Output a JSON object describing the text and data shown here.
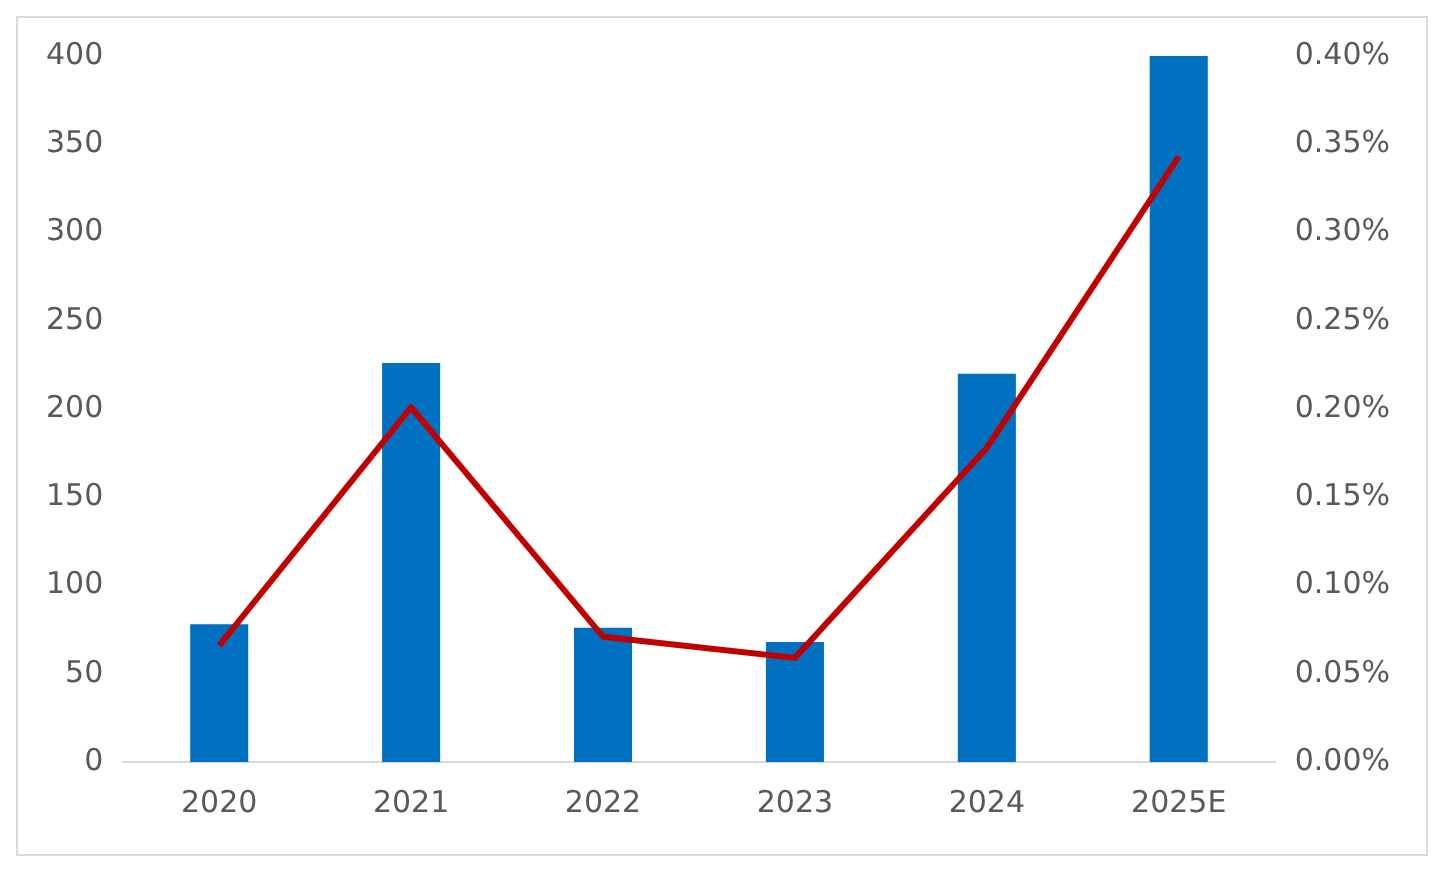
{
  "chart_data": {
    "type": "bar",
    "categories": [
      "2020",
      "2021",
      "2022",
      "2023",
      "2024",
      "2025E"
    ],
    "series": [
      {
        "color": "#0070c0",
        "values": [
          78,
          226,
          76,
          68,
          220,
          400
        ]
      },
      {
        "type": "line",
        "axis": "y2",
        "color": "#c00000",
        "marker": "none",
        "values": [
          0.066,
          0.201,
          0.071,
          0.059,
          0.178,
          0.343
        ]
      }
    ],
    "ylim": [
      0,
      400
    ],
    "yticks": [
      0,
      50,
      100,
      150,
      200,
      250,
      300,
      350,
      400
    ],
    "y2lim": [
      0,
      0.4
    ],
    "y2ticks": [
      {
        "value": 0,
        "label": "0.00%"
      },
      {
        "value": 0.05,
        "label": "0.05%"
      },
      {
        "value": 0.1,
        "label": "0.10%"
      },
      {
        "value": 0.15,
        "label": "0.15%"
      },
      {
        "value": 0.2,
        "label": "0.20%"
      },
      {
        "value": 0.25,
        "label": "0.25%"
      },
      {
        "value": 0.3,
        "label": "0.30%"
      },
      {
        "value": 0.35,
        "label": "0.35%"
      },
      {
        "value": 0.4,
        "label": "0.40%"
      }
    ],
    "grid": false,
    "legend": false
  }
}
